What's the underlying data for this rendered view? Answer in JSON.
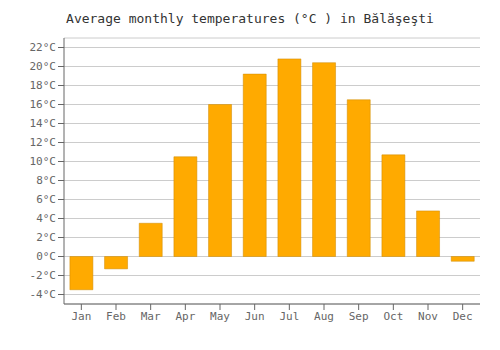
{
  "chart_data": {
    "type": "bar",
    "title": "Average monthly temperatures (°C ) in Bălăşeşti",
    "categories": [
      "Jan",
      "Feb",
      "Mar",
      "Apr",
      "May",
      "Jun",
      "Jul",
      "Aug",
      "Sep",
      "Oct",
      "Nov",
      "Dec"
    ],
    "values": [
      -3.5,
      -1.3,
      3.5,
      10.5,
      16.0,
      19.2,
      20.8,
      20.4,
      16.5,
      10.7,
      4.8,
      -0.5
    ],
    "color": "#FFAA00",
    "ylim": [
      -5,
      23
    ],
    "yticks": [
      {
        "value": -4,
        "label": "-4°C"
      },
      {
        "value": -2,
        "label": "-2°C"
      },
      {
        "value": 0,
        "label": "0°C"
      },
      {
        "value": 2,
        "label": "2°C"
      },
      {
        "value": 4,
        "label": "4°C"
      },
      {
        "value": 6,
        "label": "6°C"
      },
      {
        "value": 8,
        "label": "8°C"
      },
      {
        "value": 10,
        "label": "10°C"
      },
      {
        "value": 12,
        "label": "12°C"
      },
      {
        "value": 14,
        "label": "14°C"
      },
      {
        "value": 16,
        "label": "16°C"
      },
      {
        "value": 18,
        "label": "18°C"
      },
      {
        "value": 20,
        "label": "20°C"
      },
      {
        "value": 22,
        "label": "22°C"
      }
    ],
    "grid": true
  }
}
